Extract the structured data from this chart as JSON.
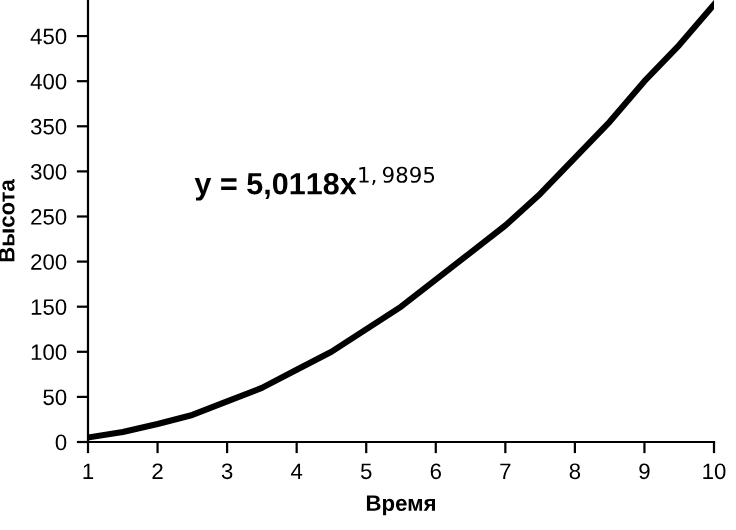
{
  "chart_data": {
    "type": "line",
    "xlabel": "Время",
    "ylabel": "Высота",
    "x": [
      1,
      1.5,
      2,
      2.5,
      3,
      3.5,
      4,
      4.5,
      5,
      5.5,
      6,
      6.5,
      7,
      7.5,
      8,
      8.5,
      9,
      9.5,
      10
    ],
    "series": [
      {
        "color": "#000000",
        "values": [
          5,
          11,
          20,
          30,
          45,
          60,
          80,
          100,
          125,
          150,
          180,
          210,
          240,
          275,
          315,
          355,
          400,
          440,
          485
        ]
      }
    ],
    "xlim": [
      1,
      10
    ],
    "xticks": [
      1,
      2,
      3,
      4,
      5,
      6,
      7,
      8,
      9,
      10
    ],
    "ylim": [
      0,
      490
    ],
    "yticks": [
      0,
      50,
      100,
      150,
      200,
      250,
      300,
      350,
      400,
      450
    ],
    "annotations": [
      "y = 5,0118x$^{1,9895}$"
    ],
    "grid": false,
    "legend": false,
    "marker": "none",
    "line_style": "solid"
  }
}
